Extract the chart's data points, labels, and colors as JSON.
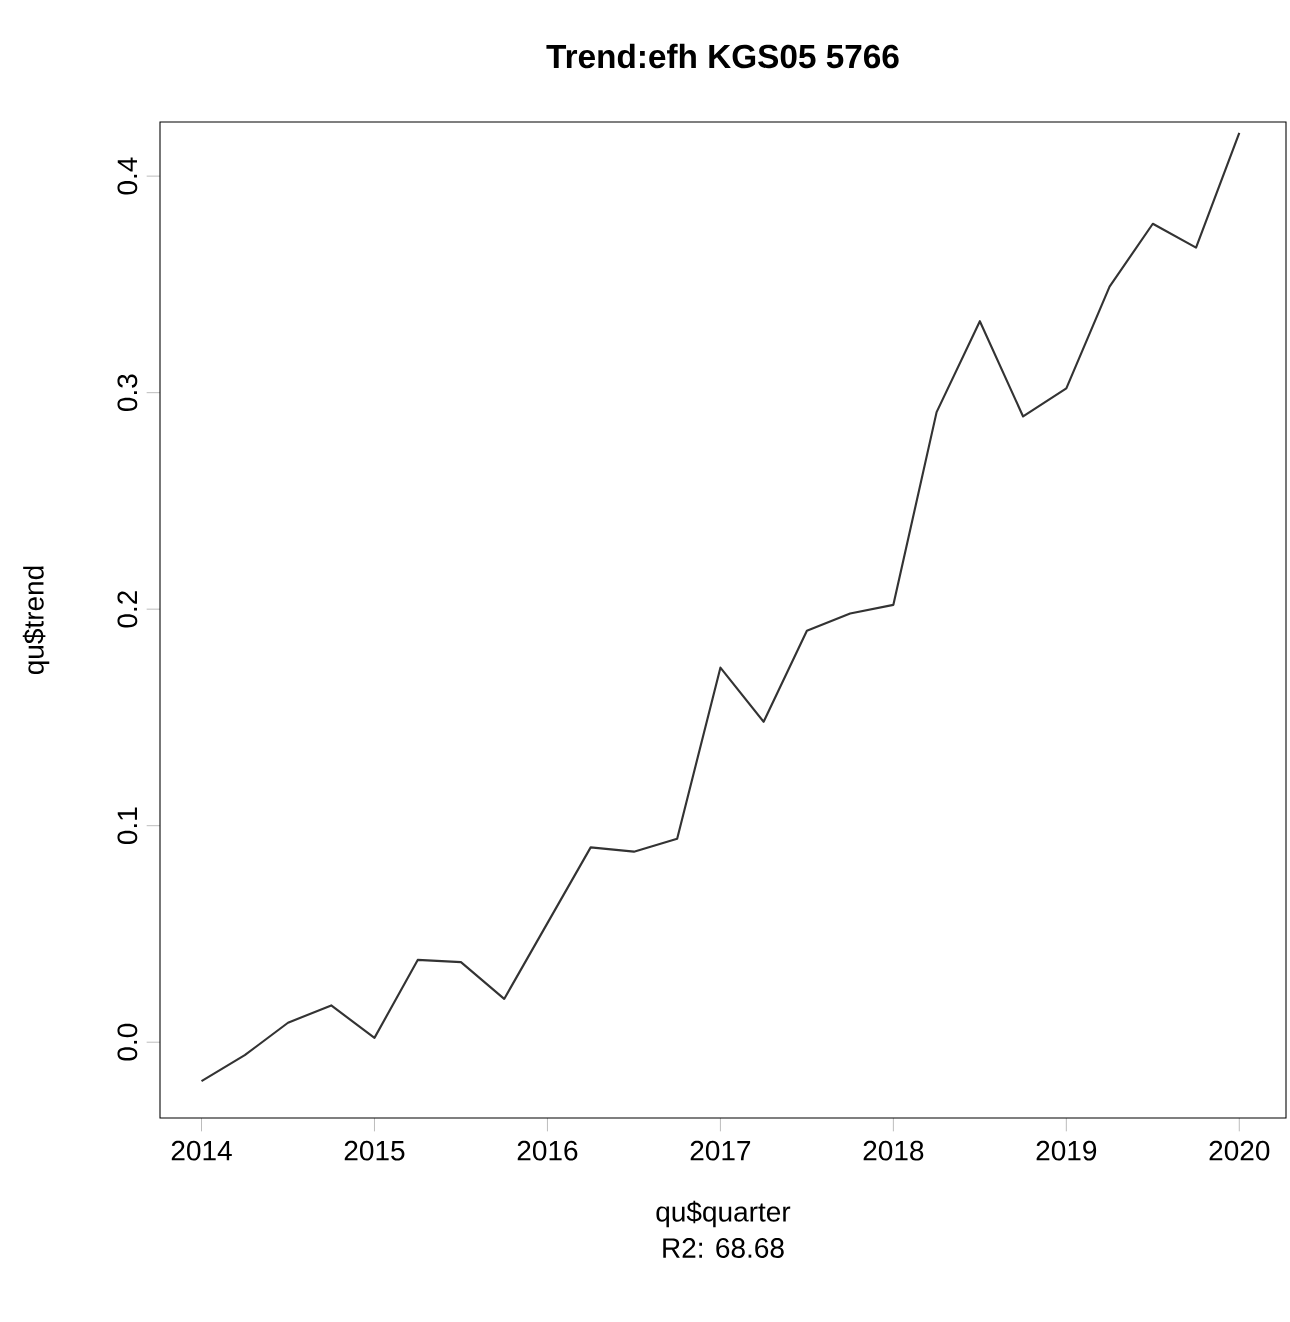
{
  "chart_data": {
    "type": "line",
    "title": "Trend:efh KGS05 5766",
    "xlabel": "qu$quarter",
    "ylabel": "qu$trend",
    "annotations": [
      "R2: 68.68"
    ],
    "x": [
      2014,
      2014.25,
      2014.5,
      2014.75,
      2015,
      2015.25,
      2015.5,
      2015.75,
      2016,
      2016.25,
      2016.5,
      2016.75,
      2017,
      2017.25,
      2017.5,
      2017.75,
      2018,
      2018.25,
      2018.5,
      2018.75,
      2019,
      2019.25,
      2019.5,
      2019.75,
      2020
    ],
    "series": [
      {
        "color": "#333333",
        "values": [
          -0.018,
          -0.006,
          0.009,
          0.017,
          0.002,
          0.038,
          0.037,
          0.02,
          0.055,
          0.09,
          0.088,
          0.094,
          0.173,
          0.148,
          0.19,
          0.198,
          0.202,
          0.291,
          0.333,
          0.289,
          0.302,
          0.349,
          0.378,
          0.367,
          0.42
        ]
      }
    ],
    "xlim": [
      2013.76,
      2020.27
    ],
    "ylim": [
      -0.035,
      0.425
    ],
    "xticks": [
      2014,
      2015,
      2016,
      2017,
      2018,
      2019,
      2020
    ],
    "yticks": [
      {
        "value": 0,
        "label": "0.0"
      },
      0.1,
      0.2,
      0.3,
      0.4
    ]
  }
}
